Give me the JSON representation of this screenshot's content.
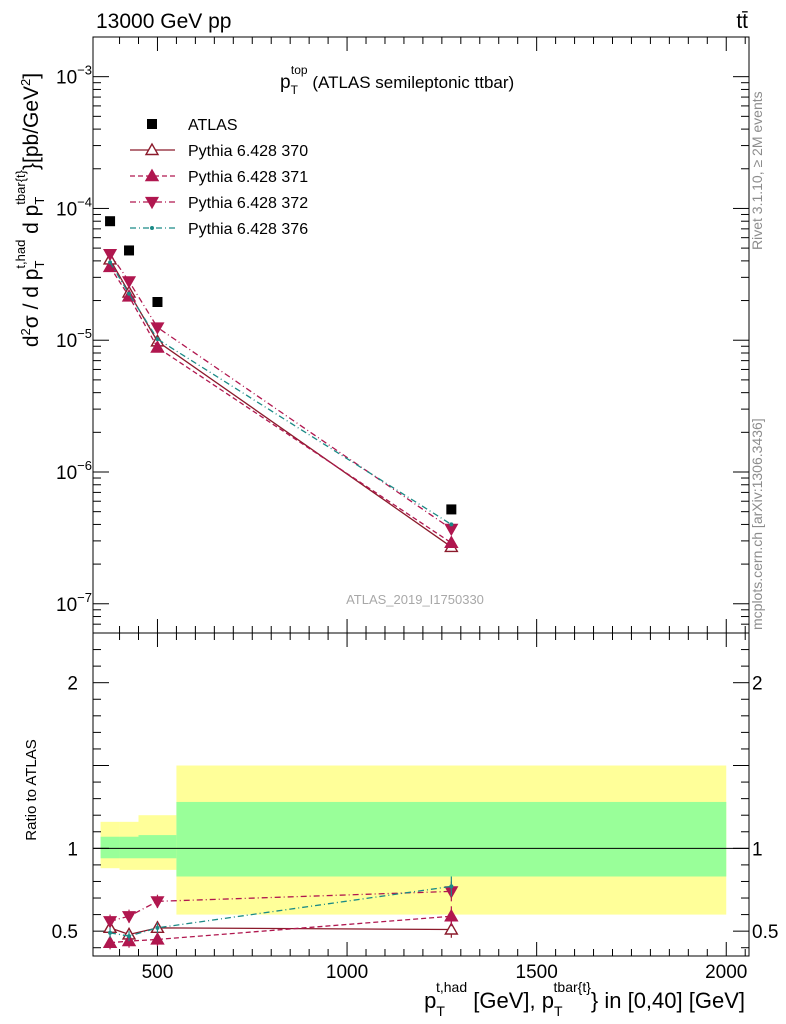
{
  "header": {
    "left": "13000 GeV pp",
    "right": "tt̄"
  },
  "side_text": {
    "rivet": "Rivet 3.1.10, ≥ 2M events",
    "mcplots": "mcplots.cern.ch [arXiv:1306.3436]"
  },
  "chart_data": {
    "type": "scatter",
    "title_main": "p",
    "title_sub": "T",
    "title_sup": "top",
    "title_rest": " (ATLAS semileptonic ttbar)",
    "watermark": "ATLAS_2019_I1750330",
    "ylabel_main": "d²σ / d p_T^{t,had} d p_T^{tbar{t}} [pb/GeV²]",
    "ylabel_ratio": "Ratio to ATLAS",
    "xlabel_main": "p_T^{t,had} [GeV], p_T^{tbar{t}} in [0,40] [GeV]",
    "x_ticks": [
      {
        "value": 500,
        "label": "500"
      },
      {
        "value": 1000,
        "label": "1000"
      },
      {
        "value": 1500,
        "label": "1500"
      },
      {
        "value": 2000,
        "label": "2000"
      }
    ],
    "y_ticks_main": [
      {
        "value": 0.001,
        "base": "10",
        "exp": "−3"
      },
      {
        "value": 0.0001,
        "base": "10",
        "exp": "−4"
      },
      {
        "value": 1e-05,
        "base": "10",
        "exp": "−5"
      },
      {
        "value": 1e-06,
        "base": "10",
        "exp": "−6"
      },
      {
        "value": 1e-07,
        "base": "10",
        "exp": "−7"
      }
    ],
    "y_ticks_ratio": [
      {
        "value": 0.5,
        "label": "0.5"
      },
      {
        "value": 1,
        "label": "1"
      },
      {
        "value": 2,
        "label": "2"
      }
    ],
    "x_range": [
      330,
      2060
    ],
    "y_range_main": [
      6e-08,
      0.002
    ],
    "y_range_ratio": [
      0.35,
      2.3
    ],
    "data": {
      "name": "ATLAS",
      "x": [
        375,
        425,
        500,
        1275
      ],
      "y": [
        8e-05,
        4.8e-05,
        1.95e-05,
        5.2e-07
      ]
    },
    "bands": [
      {
        "x0": 350,
        "x1": 400,
        "inner": [
          0.94,
          1.07
        ],
        "outer": [
          0.88,
          1.16
        ]
      },
      {
        "x0": 400,
        "x1": 450,
        "inner": [
          0.94,
          1.07
        ],
        "outer": [
          0.87,
          1.16
        ]
      },
      {
        "x0": 450,
        "x1": 550,
        "inner": [
          0.94,
          1.08
        ],
        "outer": [
          0.87,
          1.2
        ]
      },
      {
        "x0": 550,
        "x1": 2000,
        "inner": [
          0.83,
          1.28
        ],
        "outer": [
          0.6,
          1.5
        ]
      }
    ],
    "series": [
      {
        "name": "Pythia 6.428 370",
        "color": "#8b1a2b",
        "marker": "open-triangle-up",
        "dash": "",
        "x": [
          375,
          425,
          500,
          1275
        ],
        "y": [
          4.1e-05,
          2.3e-05,
          9.8e-06,
          2.7e-07
        ],
        "ratio": [
          0.52,
          0.48,
          0.52,
          0.51
        ],
        "ratio_err": [
          0.04,
          0.04,
          0.04,
          0.05
        ]
      },
      {
        "name": "Pythia 6.428 371",
        "color": "#b0174f",
        "marker": "filled-triangle-up",
        "dash": "5,3",
        "x": [
          375,
          425,
          500,
          1275
        ],
        "y": [
          3.6e-05,
          2.15e-05,
          8.8e-06,
          2.9e-07
        ],
        "ratio": [
          0.43,
          0.44,
          0.45,
          0.59
        ],
        "ratio_err": [
          0.04,
          0.04,
          0.04,
          0.06
        ]
      },
      {
        "name": "Pythia 6.428 372",
        "color": "#b0174f",
        "marker": "filled-triangle-down",
        "dash": "6,3,1,3",
        "x": [
          375,
          425,
          500,
          1275
        ],
        "y": [
          4.5e-05,
          2.8e-05,
          1.25e-05,
          3.7e-07
        ],
        "ratio": [
          0.56,
          0.59,
          0.68,
          0.74
        ],
        "ratio_err": [
          0.04,
          0.04,
          0.04,
          0.06
        ]
      },
      {
        "name": "Pythia 6.428 376",
        "color": "#1b8a86",
        "marker": "small-dot",
        "dash": "6,3,1,3",
        "x": [
          375,
          425,
          500,
          1275
        ],
        "y": [
          3.9e-05,
          2.25e-05,
          1.02e-05,
          4e-07
        ],
        "ratio": [
          0.49,
          0.47,
          0.52,
          0.77
        ],
        "ratio_err": [
          0.03,
          0.03,
          0.03,
          0.06
        ]
      }
    ]
  }
}
